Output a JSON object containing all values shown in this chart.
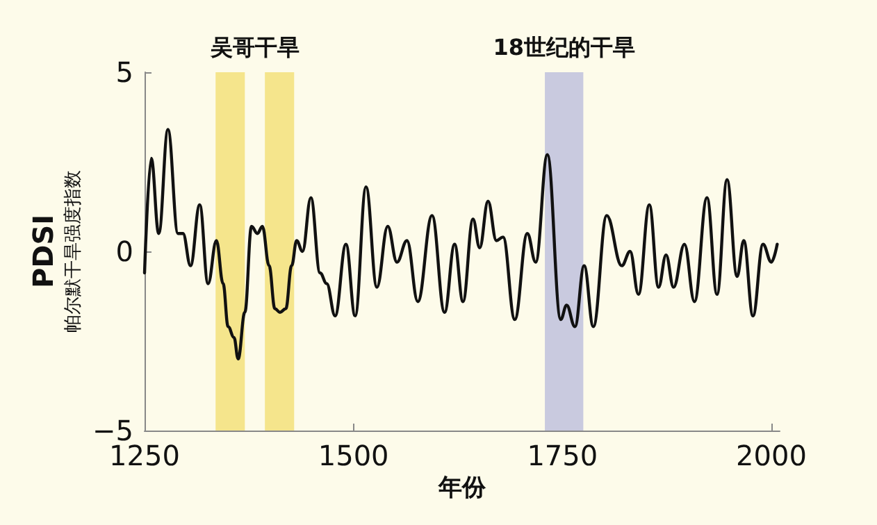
{
  "chart_data": {
    "type": "line",
    "xlabel": "年份",
    "ylabel": "PDSI\n帕尔默干旱强度指数",
    "x": [
      1250,
      1258,
      1267,
      1278,
      1290,
      1296,
      1305,
      1316,
      1326,
      1336,
      1344,
      1350,
      1357,
      1362,
      1370,
      1378,
      1385,
      1391,
      1399,
      1406,
      1412,
      1419,
      1426,
      1432,
      1439,
      1449,
      1460,
      1468,
      1478,
      1491,
      1502,
      1515,
      1528,
      1541,
      1552,
      1564,
      1577,
      1594,
      1609,
      1621,
      1631,
      1643,
      1651,
      1661,
      1671,
      1679,
      1693,
      1708,
      1718,
      1732,
      1748,
      1755,
      1765,
      1776,
      1787,
      1803,
      1821,
      1831,
      1841,
      1854,
      1865,
      1874,
      1883,
      1896,
      1908,
      1923,
      1935,
      1947,
      1959,
      1967,
      1978,
      1990,
      2000,
      2007
    ],
    "series": [
      {
        "color": "#111111",
        "values": [
          -0.6,
          2.6,
          0.5,
          3.4,
          0.5,
          0.5,
          -0.4,
          1.3,
          -0.9,
          0.3,
          -0.9,
          -2.1,
          -2.4,
          -3.0,
          -1.7,
          0.7,
          0.5,
          0.7,
          -0.4,
          -1.6,
          -1.7,
          -1.6,
          -0.4,
          0.3,
          0.0,
          1.5,
          -0.6,
          -0.9,
          -1.8,
          0.2,
          -1.8,
          1.8,
          -1.0,
          0.7,
          -0.3,
          0.3,
          -1.4,
          1.0,
          -1.7,
          0.2,
          -1.4,
          0.9,
          0.1,
          1.4,
          0.3,
          0.4,
          -1.9,
          0.5,
          -0.3,
          2.7,
          -1.9,
          -1.5,
          -2.1,
          -0.4,
          -2.1,
          1.0,
          -0.4,
          0.0,
          -1.2,
          1.3,
          -1.0,
          -0.1,
          -1.0,
          0.2,
          -1.4,
          1.5,
          -1.2,
          2.0,
          -0.7,
          0.3,
          -1.8,
          0.2,
          -0.3,
          0.2
        ]
      }
    ],
    "xlim": [
      1250,
      2010
    ],
    "xticks": [
      1250,
      1500,
      1750,
      2000
    ],
    "ylim": [
      -5,
      5
    ],
    "yticks": [
      -5,
      0,
      5
    ],
    "bands": [
      {
        "axis": "x",
        "from": 1335,
        "to": 1370,
        "label": "吴哥干旱",
        "color": "#f5e58c"
      },
      {
        "axis": "x",
        "from": 1394,
        "to": 1429,
        "color": "#f5e58c"
      },
      {
        "axis": "x",
        "from": 1729,
        "to": 1775,
        "label": "18世纪的干旱",
        "color": "#c9cadf"
      }
    ],
    "marker": "none",
    "line_style": "solid"
  }
}
